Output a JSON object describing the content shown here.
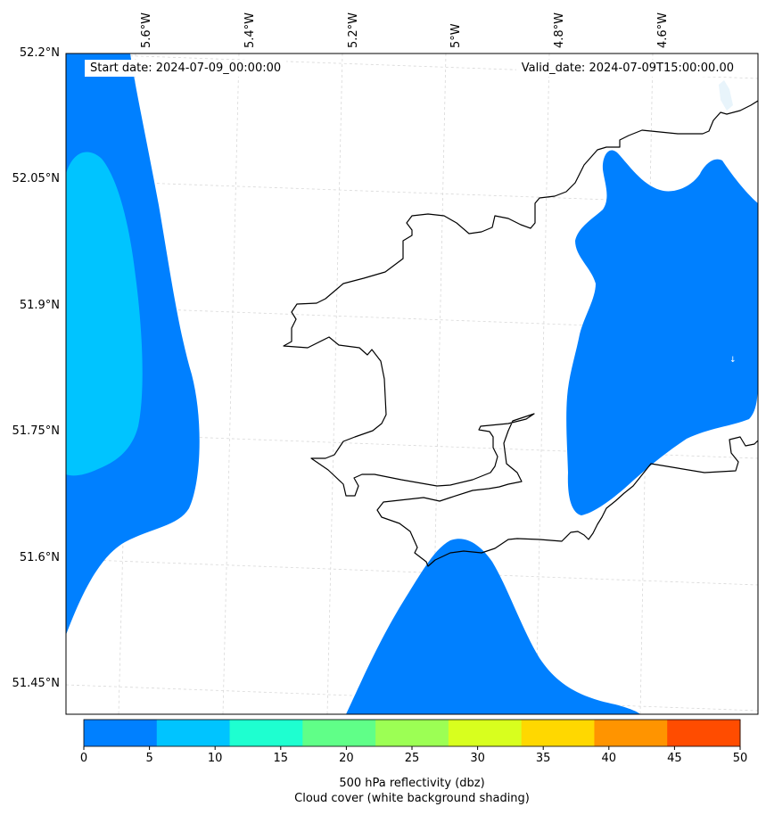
{
  "map": {
    "start_date": "Start date: 2024-07-09_00:00:00",
    "valid_date": "Valid_date: 2024-07-09T15:00:00.00",
    "lon_labels": [
      "5.6°W",
      "5.4°W",
      "5.2°W",
      "5°W",
      "4.8°W",
      "4.6°W"
    ],
    "lat_labels": [
      "52.2°N",
      "52.05°N",
      "51.9°N",
      "51.75°N",
      "51.6°N",
      "51.45°N"
    ]
  },
  "colorbar": {
    "ticks": [
      "0",
      "5",
      "10",
      "15",
      "20",
      "25",
      "30",
      "35",
      "40",
      "45",
      "50"
    ],
    "colors": [
      "#0080ff",
      "#00c4ff",
      "#1effd0",
      "#60ff88",
      "#9cff54",
      "#d8ff1e",
      "#ffd800",
      "#ff9400",
      "#ff4c00"
    ],
    "label_line1": "500 hPa reflectivity (dbz)",
    "label_line2": "Cloud cover (white background shading)"
  },
  "palette": {
    "refl_0_10": "#0080ff",
    "refl_10_15": "#00c4ff",
    "coastline": "#000000",
    "grid": "#d3d3d3"
  }
}
